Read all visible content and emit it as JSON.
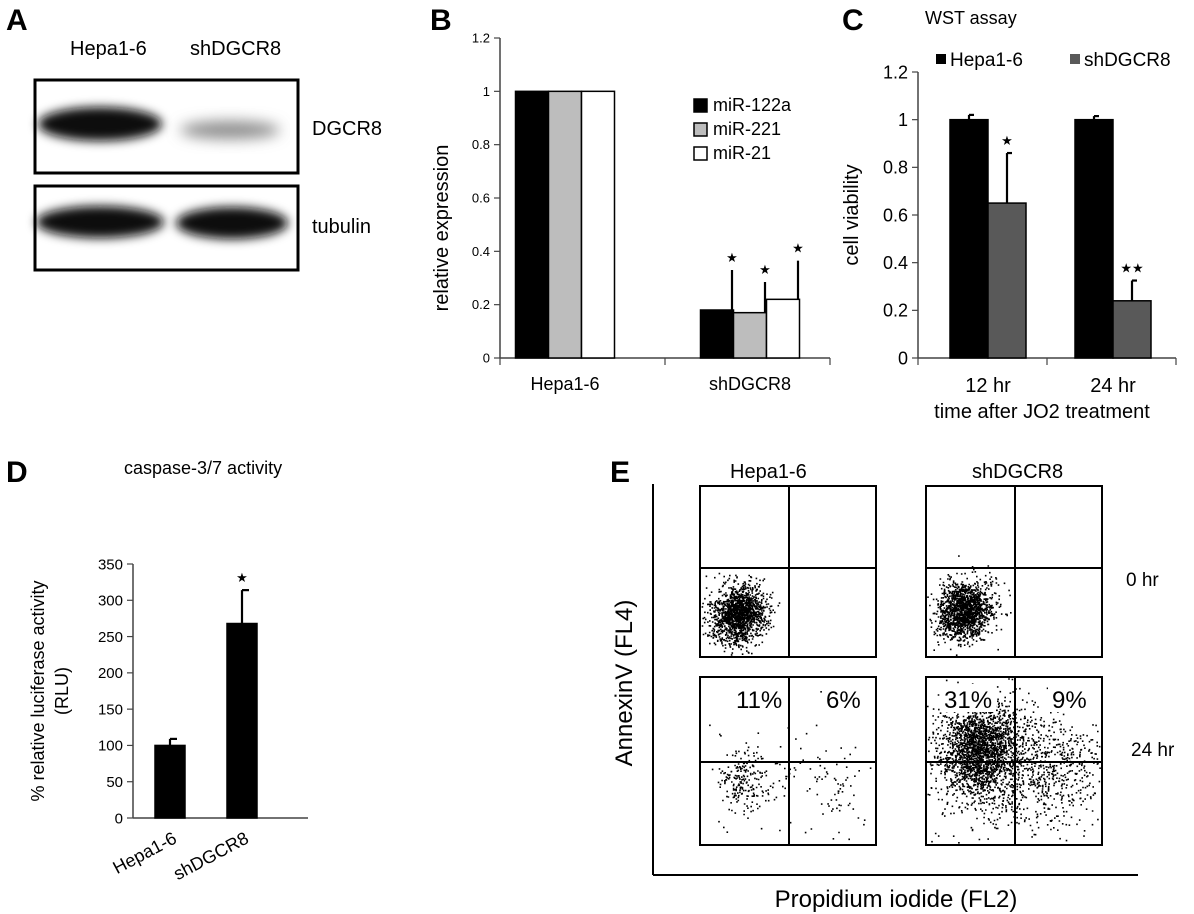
{
  "panels": {
    "a": {
      "label": "A",
      "lanes": [
        "Hepa1-6",
        "shDGCR8"
      ],
      "blots": [
        "DGCR8",
        "tubulin"
      ]
    },
    "b": {
      "label": "B"
    },
    "c": {
      "label": "C",
      "title": "WST assay"
    },
    "d": {
      "label": "D",
      "title": "caspase-3/7 activity"
    },
    "e": {
      "label": "E",
      "columns": [
        "Hepa1-6",
        "shDGCR8"
      ],
      "rows": [
        "0 hr",
        "24 hr"
      ],
      "ylabel": "AnnexinV  (FL4)",
      "xlabel": "Propidium iodide (FL2)",
      "percentages": {
        "hepa_24_left": "11%",
        "hepa_24_right": "6%",
        "sh_24_left": "31%",
        "sh_24_right": "9%"
      }
    }
  },
  "chart_data": [
    {
      "panel": "B",
      "type": "bar",
      "categories": [
        "Hepa1-6",
        "shDGCR8"
      ],
      "series": [
        {
          "name": "miR-122a",
          "color": "#000000",
          "values": [
            1.0,
            0.18
          ],
          "errors": [
            0,
            0.15
          ],
          "sig": [
            "",
            "★"
          ]
        },
        {
          "name": "miR-221",
          "color": "#bdbdbd",
          "values": [
            1.0,
            0.17
          ],
          "errors": [
            0,
            0.115
          ],
          "sig": [
            "",
            "★"
          ]
        },
        {
          "name": "miR-21",
          "color": "#ffffff",
          "values": [
            1.0,
            0.22
          ],
          "errors": [
            0,
            0.145
          ],
          "sig": [
            "",
            "★"
          ]
        }
      ],
      "ylabel": "relative expression",
      "ylim": [
        0,
        1.2
      ],
      "yticks": [
        "0",
        "0.2",
        "0.4",
        "0.6",
        "0.8",
        "1",
        "1.2"
      ],
      "legend": "right"
    },
    {
      "panel": "C",
      "type": "bar",
      "title": "WST assay",
      "categories": [
        "12 hr",
        "24 hr"
      ],
      "series": [
        {
          "name": "Hepa1-6",
          "color": "#000000",
          "values": [
            1.0,
            1.0
          ],
          "errors": [
            0.02,
            0.015
          ],
          "sig": [
            "",
            ""
          ]
        },
        {
          "name": "shDGCR8",
          "color": "#595959",
          "values": [
            0.65,
            0.24
          ],
          "errors": [
            0.21,
            0.085
          ],
          "sig": [
            "★",
            "★★"
          ]
        }
      ],
      "xlabel": "time after JO2 treatment",
      "ylabel": "cell viability",
      "ylim": [
        0,
        1.2
      ],
      "yticks": [
        "0",
        "0.2",
        "0.4",
        "0.6",
        "0.8",
        "1",
        "1.2"
      ],
      "legend": "top"
    },
    {
      "panel": "D",
      "type": "bar",
      "title": "caspase-3/7 activity",
      "categories": [
        "Hepa1-6",
        "shDGCR8"
      ],
      "series": [
        {
          "color": "#000000",
          "values": [
            100,
            268
          ],
          "errors": [
            9,
            46
          ],
          "sig": [
            "",
            "★"
          ]
        }
      ],
      "ylabel": "% relative luciferase activity (RLU)",
      "ylabel_lines": [
        "% relative luciferase activity",
        "(RLU)"
      ],
      "ylim": [
        0,
        350
      ],
      "yticks": [
        "0",
        "50",
        "100",
        "150",
        "200",
        "250",
        "300",
        "350"
      ]
    }
  ]
}
